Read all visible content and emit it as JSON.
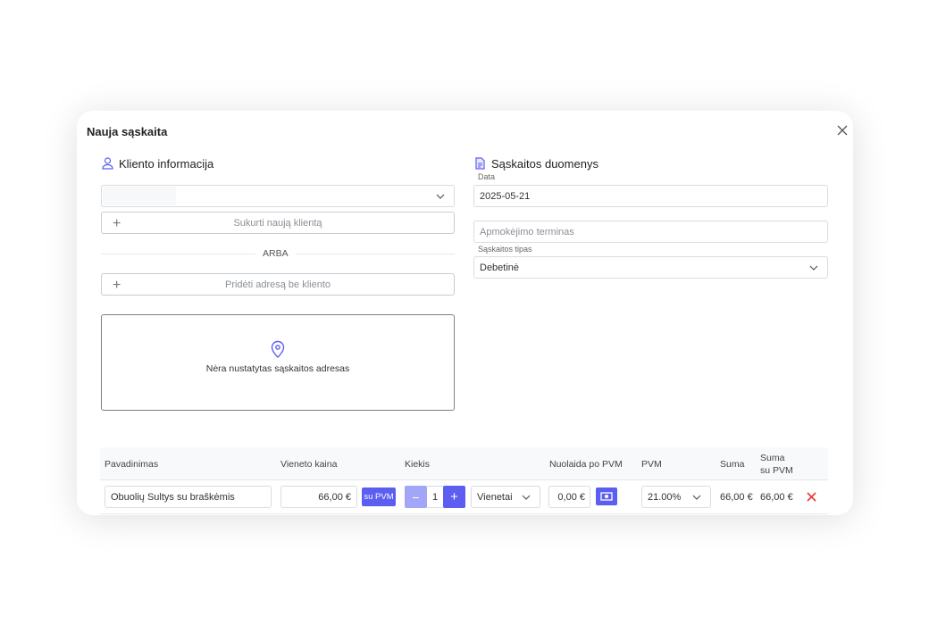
{
  "modal": {
    "title": "Nauja sąskaita"
  },
  "client": {
    "section_title": "Kliento informacija",
    "client_select_value": "",
    "create_client_label": "Sukurti naują klientą",
    "or_label": "ARBA",
    "add_address_label": "Pridėti adresą be kliento",
    "no_address_text": "Nėra nustatytas sąskaitos adresas"
  },
  "invoice": {
    "section_title": "Sąskaitos duomenys",
    "date_label": "Data",
    "date_value": "2025-05-21",
    "payment_term_placeholder": "Apmokėjimo terminas",
    "type_label": "Sąskaitos tipas",
    "type_value": "Debetinė"
  },
  "table": {
    "headers": {
      "name": "Pavadinimas",
      "unit_price": "Vieneto kaina",
      "quantity": "Kiekis",
      "discount": "Nuolaida po PVM",
      "vat": "PVM",
      "sum": "Suma",
      "sum_vat_line1": "Suma",
      "sum_vat_line2": "su PVM"
    },
    "rows": [
      {
        "name": "Obuolių Sultys su braškėmis",
        "unit_price": "66,00 €",
        "price_mode": "su PVM",
        "quantity": "1",
        "unit": "Vienetai",
        "discount": "0,00 €",
        "vat": "21.00%",
        "sum": "66,00 €",
        "sum_vat": "66,00 €"
      }
    ]
  },
  "colors": {
    "accent": "#5b5ef0",
    "accent_light": "#a3a5f6",
    "delete": "#e53935"
  }
}
